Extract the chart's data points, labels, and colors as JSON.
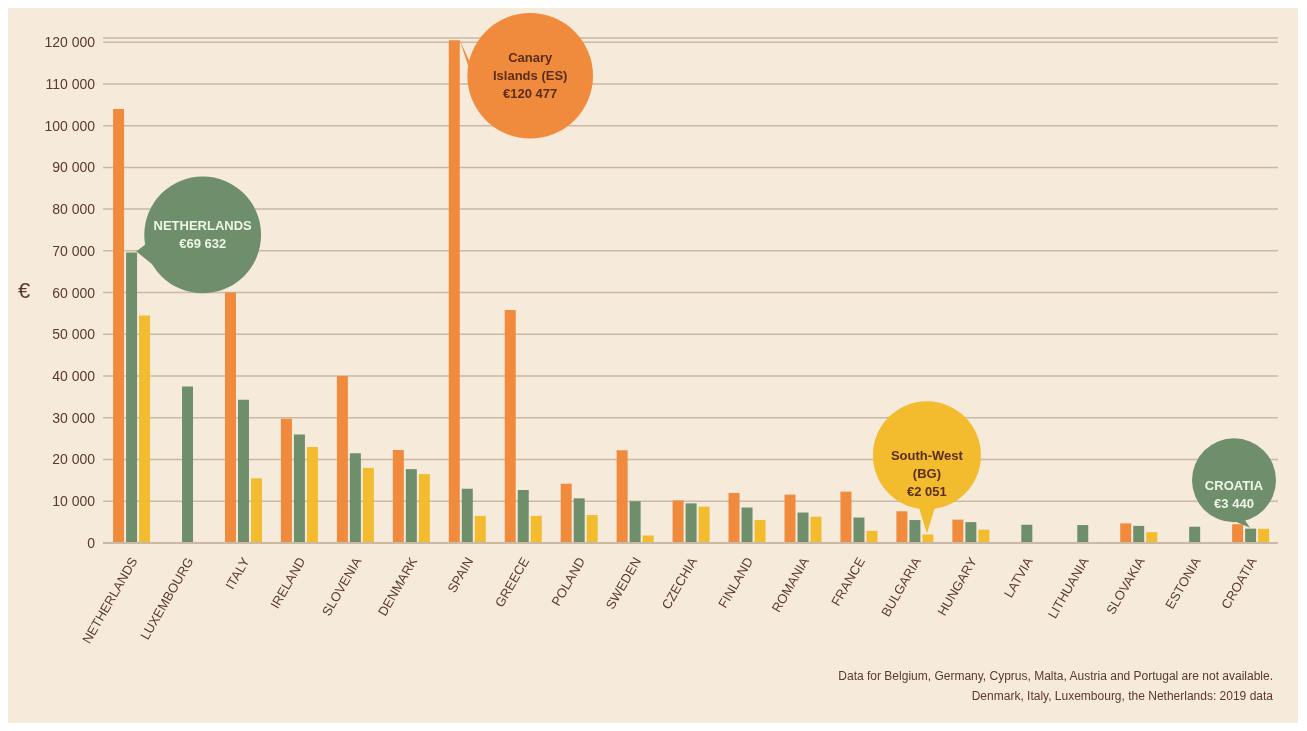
{
  "chart_data": {
    "type": "bar",
    "ylabel": "€",
    "categories": [
      "NETHERLANDS",
      "LUXEMBOURG",
      "ITALY",
      "IRELAND",
      "SLOVENIA",
      "DENMARK",
      "SPAIN",
      "GREECE",
      "POLAND",
      "SWEDEN",
      "CZECHIA",
      "FINLAND",
      "ROMANIA",
      "FRANCE",
      "BULGARIA",
      "HUNGARY",
      "LATVIA",
      "LITHUANIA",
      "SLOVAKIA",
      "ESTONIA",
      "CROATIA"
    ],
    "series": [
      {
        "color": "#f08a3c",
        "values": [
          104000,
          null,
          60000,
          29800,
          40000,
          22300,
          120477,
          55800,
          14200,
          22200,
          10200,
          12000,
          11600,
          12300,
          7600,
          5600,
          null,
          null,
          4700,
          null,
          4500
        ]
      },
      {
        "color": "#6f8f6c",
        "values": [
          69632,
          37500,
          34300,
          26000,
          21500,
          17700,
          13000,
          12700,
          10700,
          10000,
          9500,
          8500,
          7300,
          6100,
          5500,
          5000,
          4400,
          4300,
          4100,
          3900,
          3440
        ]
      },
      {
        "color": "#f2bc2e",
        "values": [
          54500,
          null,
          15500,
          23000,
          18000,
          16500,
          6500,
          6500,
          6700,
          1800,
          8700,
          5500,
          6300,
          2900,
          2051,
          3200,
          null,
          null,
          2600,
          null,
          3400
        ]
      }
    ],
    "ylim": [
      0,
      121000
    ],
    "yticks": [
      {
        "value": 0,
        "label": "0"
      },
      {
        "value": 10000,
        "label": "10 000"
      },
      {
        "value": 20000,
        "label": "20 000"
      },
      {
        "value": 30000,
        "label": "30 000"
      },
      {
        "value": 40000,
        "label": "40 000"
      },
      {
        "value": 50000,
        "label": "50 000"
      },
      {
        "value": 60000,
        "label": "60 000"
      },
      {
        "value": 70000,
        "label": "70 000"
      },
      {
        "value": 80000,
        "label": "80 000"
      },
      {
        "value": 90000,
        "label": "90 000"
      },
      {
        "value": 100000,
        "label": "100 000"
      },
      {
        "value": 110000,
        "label": "110 000"
      },
      {
        "value": 120000,
        "label": "120 000"
      }
    ],
    "grid": "y",
    "legend": false,
    "annotations": [
      {
        "text": "NETHERLANDS\n€69 632",
        "x": "NETHERLANDS",
        "y": 69632
      },
      {
        "text": "Canary\nIslands (ES)\n€120 477",
        "x": "SPAIN",
        "y": 120477
      },
      {
        "text": "South-West\n(BG)\n€2 051",
        "x": "BULGARIA",
        "y": 2051
      },
      {
        "text": "CROATIA\n€3 440",
        "x": "CROATIA",
        "y": 3440
      },
      "Data for Belgium, Germany, Cyprus, Malta, Austria and Portugal are not available.",
      "Denmark, Italy, Luxembourg, the Netherlands: 2019 data"
    ]
  }
}
